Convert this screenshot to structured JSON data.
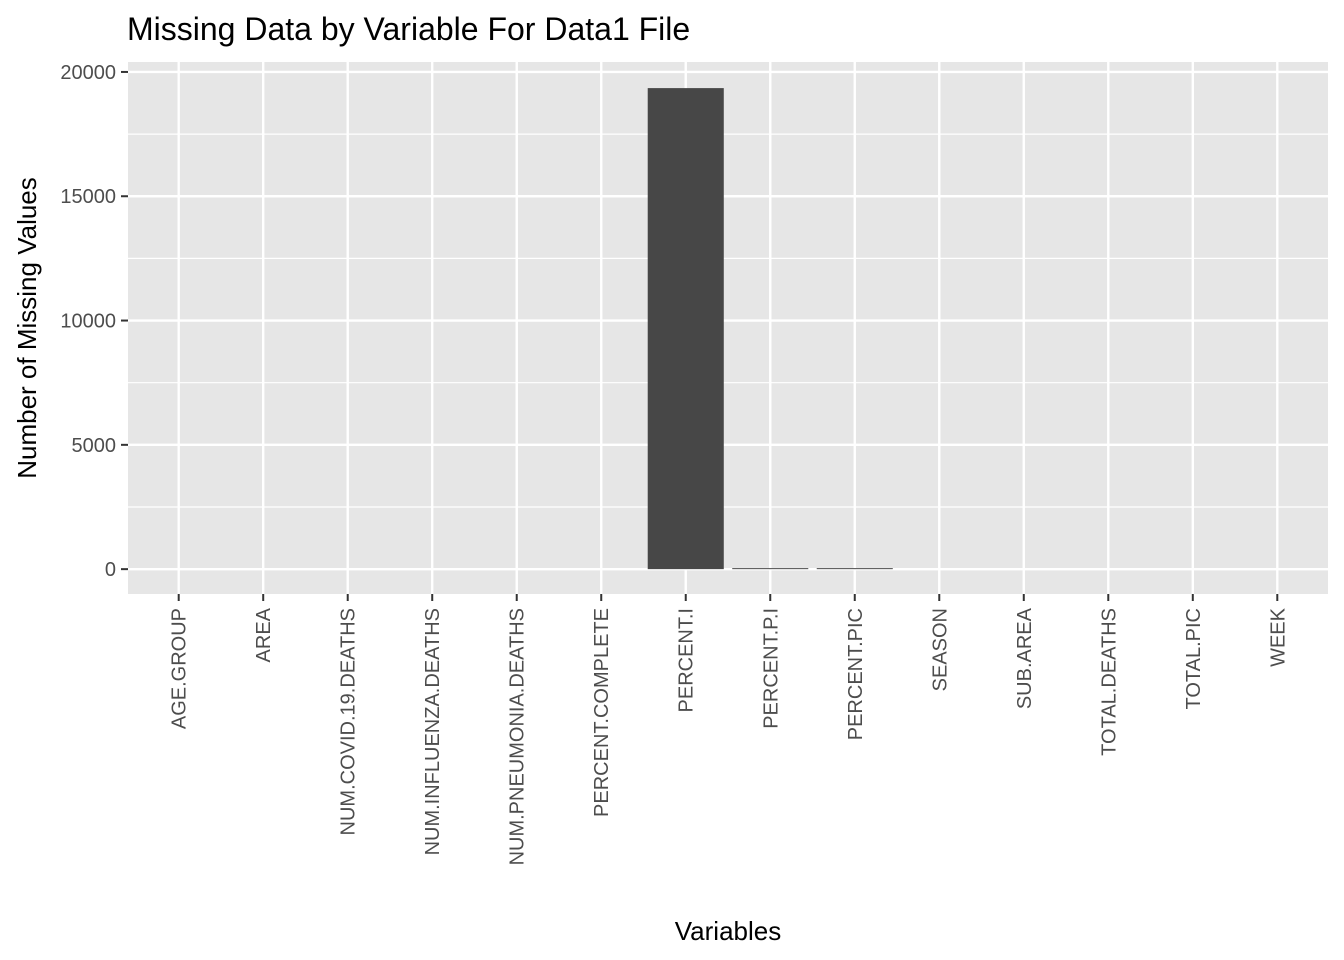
{
  "chart_data": {
    "type": "bar",
    "title": "Missing Data by Variable For Data1 File",
    "xlabel": "Variables",
    "ylabel": "Number of Missing Values",
    "categories": [
      "AGE.GROUP",
      "AREA",
      "NUM.COVID.19.DEATHS",
      "NUM.INFLUENZA.DEATHS",
      "NUM.PNEUMONIA.DEATHS",
      "PERCENT.COMPLETE",
      "PERCENT.I",
      "PERCENT.P.I",
      "PERCENT.PIC",
      "SEASON",
      "SUB.AREA",
      "TOTAL.DEATHS",
      "TOTAL.PIC",
      "WEEK"
    ],
    "values": [
      0,
      0,
      0,
      0,
      0,
      0,
      19350,
      40,
      40,
      0,
      0,
      0,
      0,
      0
    ],
    "ylim": [
      -1000,
      20400
    ],
    "yticks": [
      0,
      5000,
      10000,
      15000,
      20000
    ],
    "ytick_labels": [
      "0",
      "5000",
      "10000",
      "15000",
      "20000"
    ],
    "grid": true,
    "legend": "none",
    "colors": {
      "bar": "#474747",
      "panel": "#e6e6e6",
      "grid": "#ffffff",
      "tick": "#333333"
    }
  }
}
